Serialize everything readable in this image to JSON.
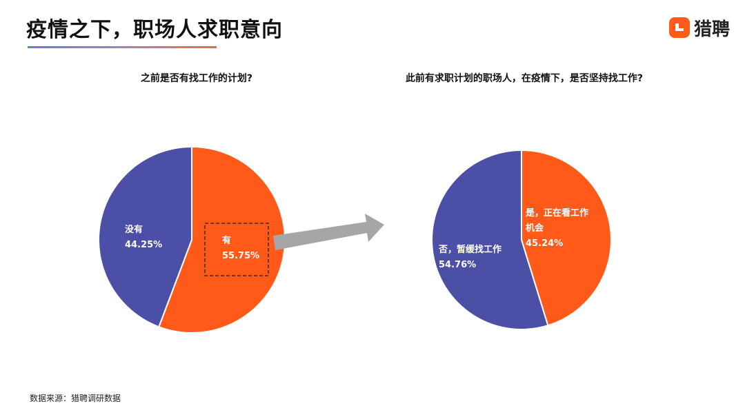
{
  "header": {
    "title": "疫情之下，职场人求职意向",
    "logo_text": "猎聘",
    "accent_color": "#ff5a1a"
  },
  "chart_data": [
    {
      "type": "pie",
      "title": "之前是否有找工作的计划?",
      "slices": [
        {
          "label": "有",
          "value": 55.75,
          "value_label": "55.75%",
          "color": "#ff5a1a"
        },
        {
          "label": "没有",
          "value": 44.25,
          "value_label": "44.25%",
          "color": "#4b4fa6"
        }
      ]
    },
    {
      "type": "pie",
      "title": "此前有求职计划的职场人，在疫情下，是否坚持找工作?",
      "slices": [
        {
          "label": "是，正在看工作机会",
          "label_lines": [
            "是，正在看工作",
            "机会"
          ],
          "value": 45.24,
          "value_label": "45.24%",
          "color": "#ff5a1a"
        },
        {
          "label": "否，暂缓找工作",
          "label_lines": [
            "否，暂缓找工作"
          ],
          "value": 54.76,
          "value_label": "54.76%",
          "color": "#4b4fa6"
        }
      ]
    }
  ],
  "footer": {
    "source": "数据来源：猎聘调研数据"
  }
}
